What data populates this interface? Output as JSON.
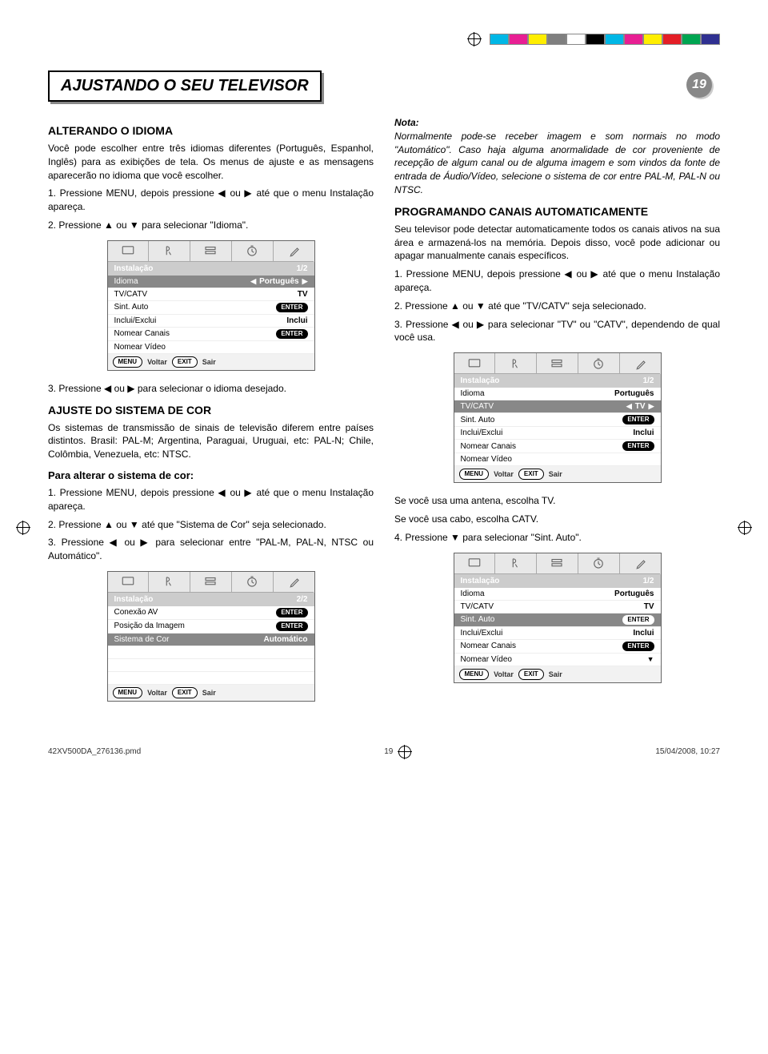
{
  "page": {
    "number": "19",
    "title": "AJUSTANDO O SEU TELEVISOR"
  },
  "colors": {
    "swatches": [
      "#00b7e6",
      "#e81f93",
      "#ffee00",
      "#7f7f7f",
      "#ffffff",
      "#000000",
      "#00b7e6",
      "#e81f93",
      "#ffee00",
      "#e41e26",
      "#00a551",
      "#2f3091"
    ]
  },
  "left": {
    "h_idioma": "ALTERANDO O IDIOMA",
    "p_idioma": "Você pode escolher entre três idiomas diferentes (Português, Espanhol, Inglês) para as exibições de tela. Os menus de ajuste e as mensagens aparecerão no idioma que você escolher.",
    "s1": "1. Pressione MENU, depois pressione ◀ ou ▶ até que o menu Instalação apareça.",
    "s2": "2. Pressione ▲ ou ▼ para selecionar \"Idioma\".",
    "s3": "3. Pressione ◀ ou ▶ para selecionar o idioma desejado.",
    "h_cor": "AJUSTE DO SISTEMA DE COR",
    "p_cor": "Os sistemas de transmissão de sinais de televisão diferem entre países distintos. Brasil: PAL-M; Argentina, Paraguai, Uruguai, etc: PAL-N; Chile, Colômbia, Venezuela, etc: NTSC.",
    "h_alt": "Para alterar o sistema de cor:",
    "c1": "1. Pressione MENU, depois pressione ◀ ou ▶ até que o menu Instalação apareça.",
    "c2": "2. Pressione ▲ ou ▼ até que \"Sistema de Cor\" seja selecionado.",
    "c3": "3. Pressione ◀ ou ▶ para selecionar entre \"PAL-M, PAL-N, NTSC ou Automático\"."
  },
  "right": {
    "note_t": "Nota:",
    "note": "Normalmente pode-se receber imagem e som normais no modo \"Automático\". Caso haja alguma anormalidade de cor proveniente de recepção de algum canal ou de alguma imagem e som vindos da fonte de entrada de Áudio/Vídeo, selecione o sistema de cor entre PAL-M, PAL-N ou NTSC.",
    "h_prog": "PROGRAMANDO CANAIS AUTOMATICAMENTE",
    "p_prog": "Seu televisor pode detectar automaticamente todos os canais ativos na sua área e armazená-los na memória. Depois disso, você pode adicionar ou apagar manualmente canais específicos.",
    "p1": "1. Pressione MENU, depois pressione ◀ ou ▶ até que o menu Instalação apareça.",
    "p2": "2. Pressione ▲ ou ▼ até que \"TV/CATV\" seja selecionado.",
    "p3": "3. Pressione ◀ ou ▶ para selecionar \"TV\" ou \"CATV\", dependendo de qual você usa.",
    "ant": "Se você usa uma antena, escolha TV.",
    "cabo": "Se você usa cabo, escolha CATV.",
    "p4": "4. Pressione ▼ para selecionar \"Sint. Auto\"."
  },
  "osd_common": {
    "title": "Instalação",
    "menu": "MENU",
    "voltar": "Voltar",
    "exit": "EXIT",
    "sair": "Sair",
    "rows": {
      "idioma": "Idioma",
      "idioma_v": "Português",
      "tvcatv": "TV/CATV",
      "tvcatv_v": "TV",
      "sint": "Sint. Auto",
      "enter": "ENTER",
      "inclui": "Inclui/Exclui",
      "inclui_v": "Inclui",
      "nomcan": "Nomear Canais",
      "nomvid": "Nomear Vídeo",
      "conexao": "Conexão AV",
      "posimg": "Posição da Imagem",
      "sist": "Sistema de Cor",
      "sist_v": "Automático"
    },
    "pg12": "1/2",
    "pg22": "2/2"
  },
  "footer": {
    "file": "42XV500DA_276136.pmd",
    "pg": "19",
    "ts": "15/04/2008, 10:27"
  }
}
